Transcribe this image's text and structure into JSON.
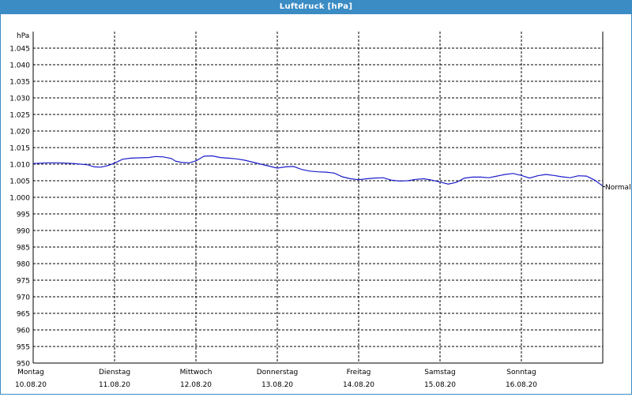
{
  "title": "Luftdruck [hPa]",
  "colors": {
    "title_bar": "#3b8cc4",
    "series": "#1c1ccc",
    "grid": "#000000"
  },
  "chart_data": {
    "type": "line",
    "title": "Luftdruck [hPa]",
    "ylabel": "hPa",
    "ylim": [
      950,
      1050
    ],
    "yticks": [
      950,
      955,
      960,
      965,
      970,
      975,
      980,
      985,
      990,
      995,
      1000,
      1005,
      1010,
      1015,
      1020,
      1025,
      1030,
      1035,
      1040,
      1045
    ],
    "ytick_labels": [
      "950",
      "955",
      "960",
      "965",
      "970",
      "975",
      "980",
      "985",
      "990",
      "995",
      "1.000",
      "1.005",
      "1.010",
      "1.015",
      "1.020",
      "1.025",
      "1.030",
      "1.035",
      "1.040",
      "1.045"
    ],
    "grid": true,
    "x_days": [
      {
        "day": "Montag",
        "date": "10.08.20"
      },
      {
        "day": "Dienstag",
        "date": "11.08.20"
      },
      {
        "day": "Mittwoch",
        "date": "12.08.20"
      },
      {
        "day": "Donnerstag",
        "date": "13.08.20"
      },
      {
        "day": "Freitag",
        "date": "14.08.20"
      },
      {
        "day": "Samstag",
        "date": "15.08.20"
      },
      {
        "day": "Sonntag",
        "date": "16.08.20"
      }
    ],
    "xlim": [
      0,
      7
    ],
    "series": [
      {
        "name": "Normal",
        "x": [
          0,
          0.17,
          0.33,
          0.5,
          0.58,
          0.67,
          0.75,
          0.83,
          0.92,
          1.0,
          1.1,
          1.2,
          1.3,
          1.42,
          1.5,
          1.6,
          1.7,
          1.75,
          1.83,
          1.92,
          2.0,
          2.1,
          2.2,
          2.3,
          2.4,
          2.5,
          2.6,
          2.7,
          2.8,
          2.9,
          3.0,
          3.1,
          3.2,
          3.3,
          3.4,
          3.5,
          3.6,
          3.7,
          3.8,
          3.9,
          4.0,
          4.1,
          4.2,
          4.3,
          4.4,
          4.5,
          4.6,
          4.7,
          4.8,
          4.9,
          5.0,
          5.1,
          5.2,
          5.3,
          5.4,
          5.5,
          5.6,
          5.7,
          5.8,
          5.9,
          6.0,
          6.1,
          6.2,
          6.3,
          6.4,
          6.5,
          6.6,
          6.7,
          6.8,
          6.9,
          7.0
        ],
        "y": [
          1010.2,
          1010.4,
          1010.4,
          1010.2,
          1010.0,
          1009.8,
          1009.2,
          1009.1,
          1009.6,
          1010.3,
          1011.5,
          1011.8,
          1011.9,
          1012.0,
          1012.3,
          1012.2,
          1011.7,
          1010.9,
          1010.5,
          1010.4,
          1011.0,
          1012.4,
          1012.5,
          1012.0,
          1011.8,
          1011.6,
          1011.2,
          1010.6,
          1010.0,
          1009.4,
          1008.8,
          1009.2,
          1009.3,
          1008.4,
          1007.9,
          1007.7,
          1007.6,
          1007.3,
          1006.2,
          1005.6,
          1005.3,
          1005.6,
          1005.8,
          1005.9,
          1005.2,
          1004.9,
          1005.0,
          1005.4,
          1005.6,
          1005.2,
          1004.6,
          1004.0,
          1004.5,
          1005.8,
          1006.1,
          1006.1,
          1005.9,
          1006.4,
          1006.9,
          1007.2,
          1006.6,
          1005.8,
          1006.5,
          1006.9,
          1006.6,
          1006.2,
          1005.9,
          1006.5,
          1006.4,
          1005.2,
          1003.4
        ]
      }
    ]
  }
}
